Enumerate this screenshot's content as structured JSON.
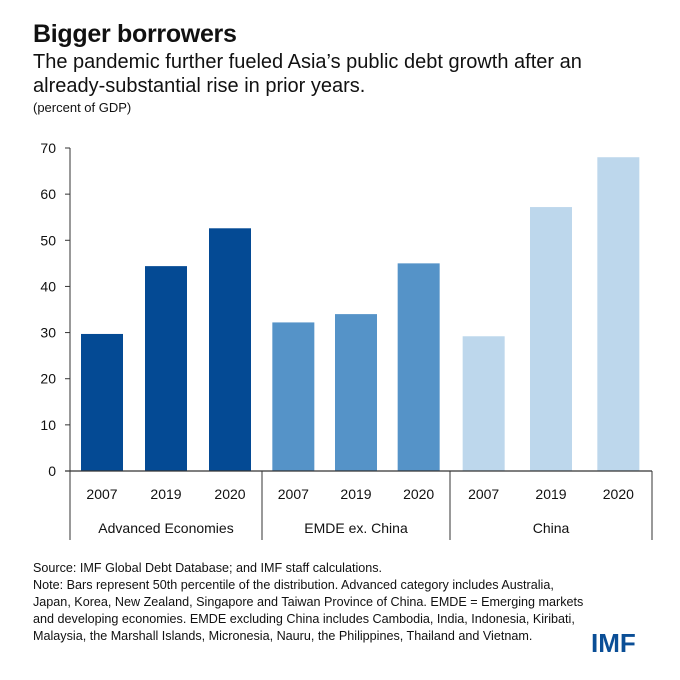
{
  "title": "Bigger borrowers",
  "subtitle": "The pandemic further fueled Asia’s public debt growth after an already-substantial rise in prior years.",
  "unit": "(percent of GDP)",
  "notes": {
    "source": "Source: IMF Global Debt Database; and IMF staff calculations.",
    "note": "Note: Bars represent 50th percentile of the distribution. Advanced category includes Australia, Japan, Korea, New Zealand, Singapore and Taiwan Province of China. EMDE = Emerging markets and developing economies. EMDE excluding China includes Cambodia, India, Indonesia, Kiribati, Malaysia, the Marshall Islands, Micronesia, Nauru, the Philippines, Thailand and Vietnam."
  },
  "logo": "IMF",
  "chart_data": {
    "type": "bar",
    "title": "",
    "ylabel": "",
    "ylim": [
      0,
      70
    ],
    "yticks": [
      0,
      10,
      20,
      30,
      40,
      50,
      60,
      70
    ],
    "grid": false,
    "groups": [
      {
        "name": "Advanced Economies",
        "color": "#044a94",
        "categories": [
          "2007",
          "2019",
          "2020"
        ],
        "values": [
          29.7,
          44.4,
          52.6
        ]
      },
      {
        "name": "EMDE ex. China",
        "color": "#5593c8",
        "categories": [
          "2007",
          "2019",
          "2020"
        ],
        "values": [
          32.2,
          34.0,
          45.0
        ]
      },
      {
        "name": "China",
        "color": "#bdd7ec",
        "categories": [
          "2007",
          "2019",
          "2020"
        ],
        "values": [
          29.2,
          57.2,
          68.0
        ]
      }
    ]
  }
}
